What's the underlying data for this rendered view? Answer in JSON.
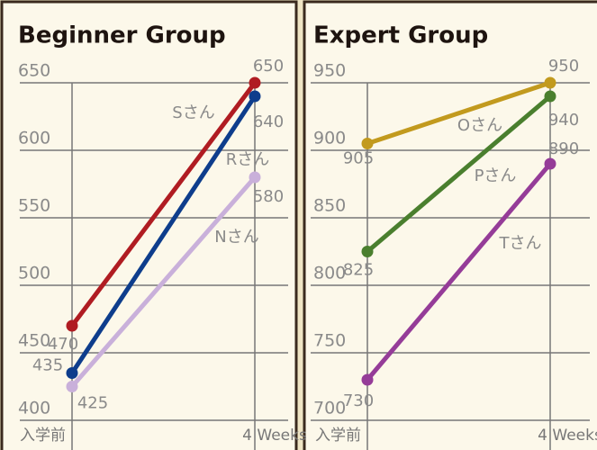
{
  "chart_data": [
    {
      "type": "line",
      "title": "Beginner Group",
      "categories": [
        "入学前",
        "4 Weeks"
      ],
      "series": [
        {
          "name": "Sさん",
          "color": "#b01c22",
          "values": [
            470,
            650
          ]
        },
        {
          "name": "Rさん",
          "color": "#0e3d8c",
          "values": [
            435,
            640
          ]
        },
        {
          "name": "Nさん",
          "color": "#c9b0da",
          "values": [
            425,
            580
          ]
        }
      ],
      "ylim": [
        400,
        650
      ],
      "yticks": [
        400,
        450,
        500,
        550,
        600,
        650
      ],
      "grid": true
    },
    {
      "type": "line",
      "title": "Expert Group",
      "categories": [
        "入学前",
        "4 Weeks"
      ],
      "series": [
        {
          "name": "Oさん",
          "color": "#c29a1e",
          "values": [
            905,
            950
          ]
        },
        {
          "name": "Pさん",
          "color": "#4a7f2e",
          "values": [
            825,
            940
          ]
        },
        {
          "name": "Tさん",
          "color": "#953c98",
          "values": [
            730,
            890
          ]
        }
      ],
      "ylim": [
        700,
        950
      ],
      "yticks": [
        700,
        750,
        800,
        850,
        900,
        950
      ],
      "grid": true
    }
  ]
}
